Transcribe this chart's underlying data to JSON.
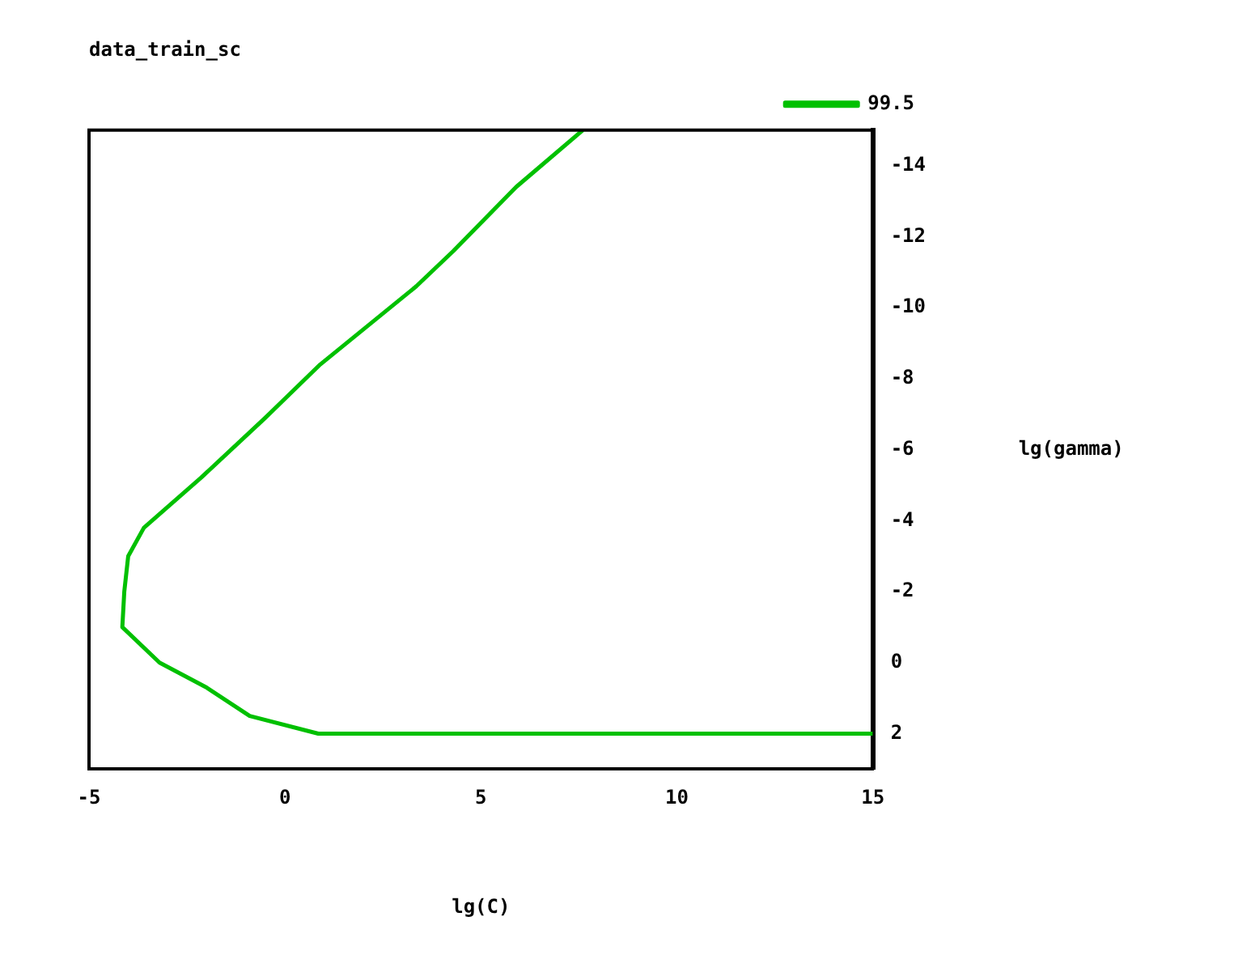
{
  "chart_data": {
    "type": "line",
    "title": "data_train_sc",
    "xlabel": "lg(C)",
    "ylabel": "lg(gamma)",
    "x": [
      7.6,
      5.9,
      4.3,
      3.35,
      0.9,
      -0.5,
      -2.15,
      -3.6,
      -4,
      -4.1,
      -4.15,
      -3.2,
      -2,
      -0.9,
      0.85,
      15
    ],
    "series": [
      {
        "name": "99.5",
        "color": "#00c000",
        "values": [
          -15,
          -13.4,
          -11.6,
          -10.6,
          -8.4,
          -6.9,
          -5.2,
          -3.8,
          -3,
          -2,
          -1,
          0,
          0.7,
          1.5,
          2,
          2
        ]
      }
    ],
    "xlim": [
      -5,
      15
    ],
    "xticks": [
      -5,
      0,
      5,
      10,
      15
    ],
    "ylim": [
      3,
      -15
    ],
    "yticks": [
      -14,
      -12,
      -10,
      -8,
      -6,
      -4,
      -2,
      0,
      2
    ],
    "grid": false,
    "legend": "top right",
    "marker": "none",
    "line_style": "solid"
  }
}
